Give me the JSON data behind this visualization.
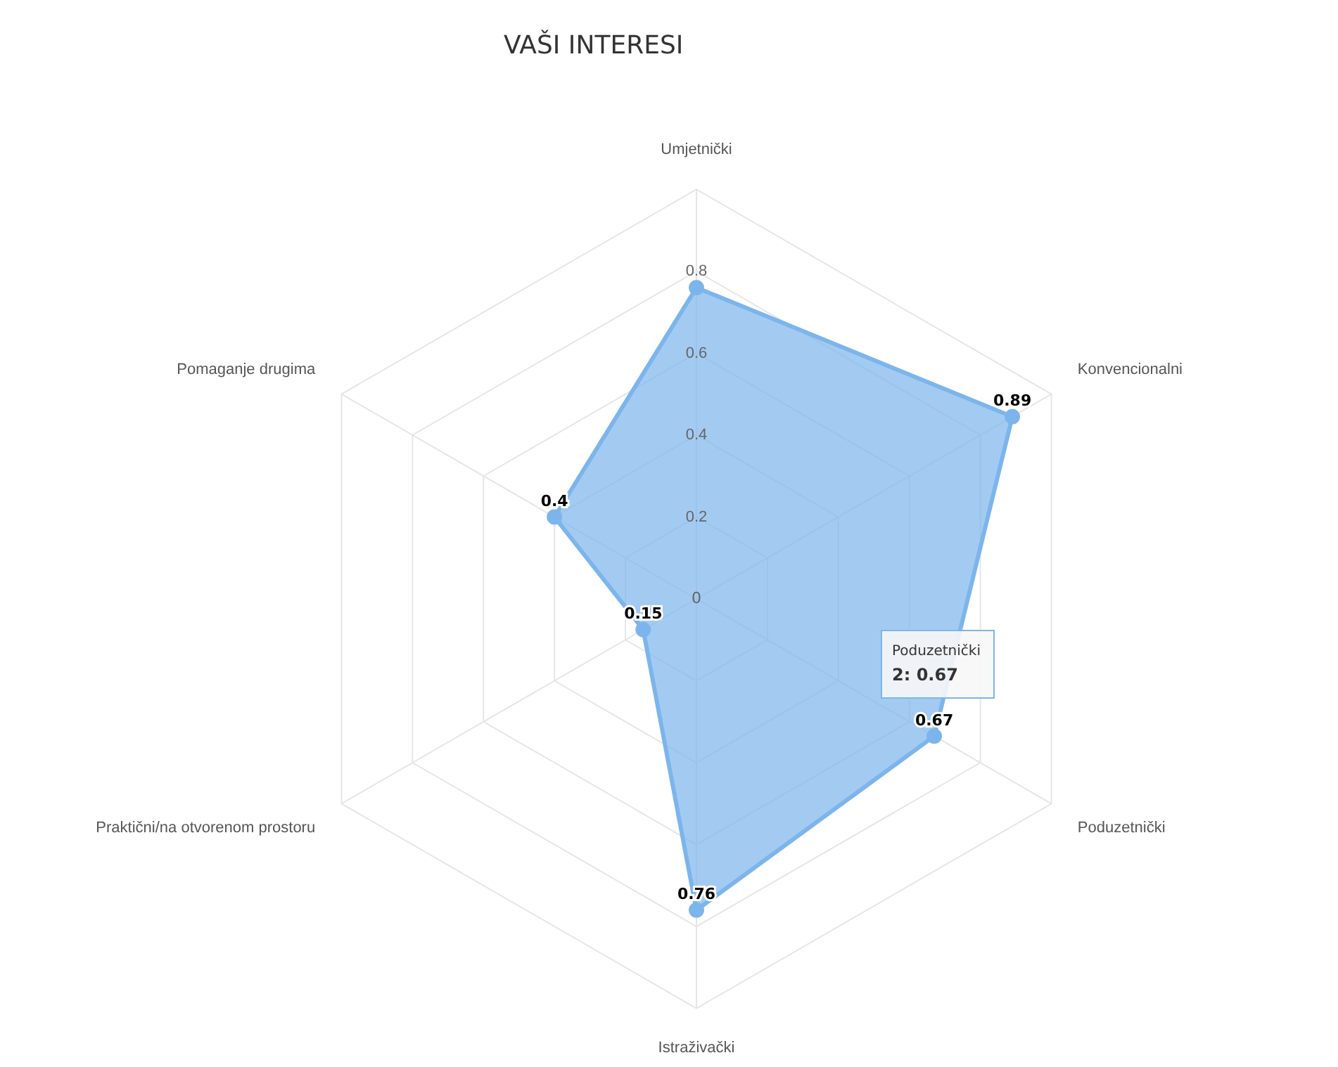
{
  "chart_data": {
    "type": "radar",
    "title": "VAŠI INTERESI",
    "categories": [
      "Umjetnički",
      "Konvencionalni",
      "Poduzetnički",
      "Istraživački",
      "Praktični/na otvorenom prostoru",
      "Pomaganje drugima"
    ],
    "series": [
      {
        "color": "#7cb5ec",
        "values": [
          0.76,
          0.89,
          0.67,
          0.76,
          0.15,
          0.4
        ],
        "value_labels": [
          null,
          "0.89",
          "0.67",
          "0.76",
          "0.15",
          "0.4"
        ]
      }
    ],
    "ylim": [
      0,
      1
    ],
    "yticks": [
      0,
      0.2,
      0.4,
      0.6,
      0.8
    ],
    "grid": true,
    "legend": false,
    "marker": "circle",
    "annotations": [
      "Poduzetnički",
      "2: 0.67"
    ]
  }
}
